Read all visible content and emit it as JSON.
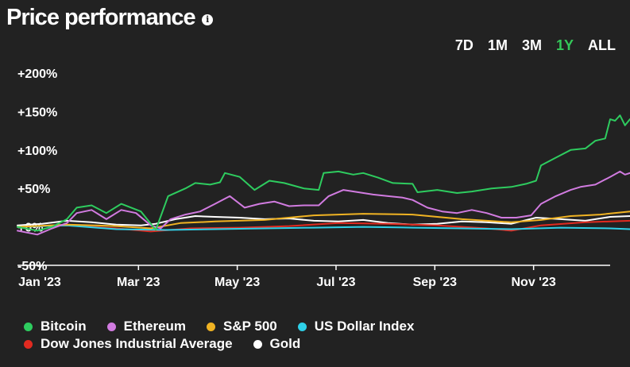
{
  "header": {
    "title": "Price performance",
    "info_icon": "info-icon"
  },
  "ranges": [
    {
      "label": "7D",
      "active": false
    },
    {
      "label": "1M",
      "active": false
    },
    {
      "label": "3M",
      "active": false
    },
    {
      "label": "1Y",
      "active": true
    },
    {
      "label": "ALL",
      "active": false
    }
  ],
  "colors": {
    "background": "#222222",
    "text": "#ffffff",
    "active": "#34c759"
  },
  "chart_data": {
    "type": "line",
    "title": "Price performance",
    "x_range": [
      0,
      12
    ],
    "x_unit": "months since Jan 1, 2023",
    "xticks": [
      {
        "label": "Jan '23",
        "value": 0.45
      },
      {
        "label": "Mar '23",
        "value": 2.45
      },
      {
        "label": "May '23",
        "value": 4.45
      },
      {
        "label": "Jul '23",
        "value": 6.45
      },
      {
        "label": "Sep '23",
        "value": 8.45
      },
      {
        "label": "Nov '23",
        "value": 10.45
      }
    ],
    "ylim": [
      -50,
      200
    ],
    "yticks": [
      {
        "label": "+200%",
        "value": 200
      },
      {
        "label": "+150%",
        "value": 150
      },
      {
        "label": "+100%",
        "value": 100
      },
      {
        "label": "+50%",
        "value": 50
      },
      {
        "label": "+0%",
        "value": 0
      },
      {
        "label": "-50%",
        "value": -50
      }
    ],
    "series": [
      {
        "name": "Bitcoin",
        "color": "#2ecc5f",
        "points": [
          [
            0,
            0
          ],
          [
            0.4,
            -5
          ],
          [
            0.7,
            0
          ],
          [
            1,
            10
          ],
          [
            1.2,
            25
          ],
          [
            1.5,
            28
          ],
          [
            1.8,
            18
          ],
          [
            2.1,
            30
          ],
          [
            2.5,
            20
          ],
          [
            2.8,
            -4
          ],
          [
            3.05,
            40
          ],
          [
            3.4,
            50
          ],
          [
            3.6,
            57
          ],
          [
            3.9,
            55
          ],
          [
            4.1,
            58
          ],
          [
            4.2,
            70
          ],
          [
            4.5,
            65
          ],
          [
            4.8,
            48
          ],
          [
            5.1,
            60
          ],
          [
            5.4,
            57
          ],
          [
            5.8,
            50
          ],
          [
            6.1,
            48
          ],
          [
            6.2,
            70
          ],
          [
            6.5,
            72
          ],
          [
            6.8,
            68
          ],
          [
            7.0,
            70
          ],
          [
            7.3,
            64
          ],
          [
            7.6,
            57
          ],
          [
            8.0,
            56
          ],
          [
            8.1,
            45
          ],
          [
            8.5,
            48
          ],
          [
            8.9,
            44
          ],
          [
            9.2,
            46
          ],
          [
            9.6,
            50
          ],
          [
            10.0,
            52
          ],
          [
            10.3,
            56
          ],
          [
            10.5,
            60
          ],
          [
            10.6,
            80
          ],
          [
            10.9,
            90
          ],
          [
            11.2,
            100
          ],
          [
            11.5,
            102
          ],
          [
            11.7,
            112
          ],
          [
            11.9,
            115
          ],
          [
            12.0,
            140
          ],
          [
            12.1,
            138
          ],
          [
            12.2,
            145
          ],
          [
            12.3,
            132
          ],
          [
            12.4,
            140
          ]
        ]
      },
      {
        "name": "Ethereum",
        "color": "#d17be0",
        "points": [
          [
            0,
            -5
          ],
          [
            0.4,
            -10
          ],
          [
            0.7,
            -2
          ],
          [
            1,
            5
          ],
          [
            1.2,
            18
          ],
          [
            1.5,
            22
          ],
          [
            1.8,
            10
          ],
          [
            2.1,
            22
          ],
          [
            2.4,
            18
          ],
          [
            2.7,
            2
          ],
          [
            2.9,
            -2
          ],
          [
            3.1,
            10
          ],
          [
            3.4,
            16
          ],
          [
            3.7,
            20
          ],
          [
            4.0,
            30
          ],
          [
            4.3,
            40
          ],
          [
            4.6,
            25
          ],
          [
            4.9,
            30
          ],
          [
            5.2,
            33
          ],
          [
            5.5,
            27
          ],
          [
            5.8,
            28
          ],
          [
            6.1,
            28
          ],
          [
            6.3,
            40
          ],
          [
            6.6,
            48
          ],
          [
            6.9,
            45
          ],
          [
            7.2,
            42
          ],
          [
            7.5,
            40
          ],
          [
            7.8,
            38
          ],
          [
            8.0,
            35
          ],
          [
            8.3,
            25
          ],
          [
            8.6,
            20
          ],
          [
            8.9,
            18
          ],
          [
            9.2,
            22
          ],
          [
            9.5,
            18
          ],
          [
            9.8,
            12
          ],
          [
            10.1,
            12
          ],
          [
            10.4,
            15
          ],
          [
            10.6,
            30
          ],
          [
            10.9,
            40
          ],
          [
            11.2,
            48
          ],
          [
            11.4,
            52
          ],
          [
            11.7,
            55
          ],
          [
            12.0,
            65
          ],
          [
            12.2,
            72
          ],
          [
            12.3,
            68
          ],
          [
            12.4,
            70
          ]
        ]
      },
      {
        "name": "S&P 500",
        "color": "#f0b323",
        "points": [
          [
            0,
            0
          ],
          [
            1,
            3
          ],
          [
            2,
            1
          ],
          [
            2.7,
            -2
          ],
          [
            3.3,
            5
          ],
          [
            4,
            7
          ],
          [
            5,
            9
          ],
          [
            6,
            15
          ],
          [
            7,
            17
          ],
          [
            8,
            16
          ],
          [
            9,
            10
          ],
          [
            10,
            6
          ],
          [
            10.6,
            9
          ],
          [
            11.2,
            14
          ],
          [
            11.8,
            16
          ],
          [
            12.4,
            20
          ]
        ]
      },
      {
        "name": "US Dollar Index",
        "color": "#2ed0e8",
        "points": [
          [
            0,
            0
          ],
          [
            1,
            2
          ],
          [
            2,
            -3
          ],
          [
            3,
            -4
          ],
          [
            4,
            -3
          ],
          [
            5,
            -2
          ],
          [
            6,
            -1
          ],
          [
            7,
            0
          ],
          [
            8,
            -1
          ],
          [
            9,
            -2
          ],
          [
            10,
            -3
          ],
          [
            11,
            -1
          ],
          [
            12,
            -2
          ],
          [
            12.4,
            -3
          ]
        ]
      },
      {
        "name": "Dow Jones Industrial Average",
        "color": "#e12a20",
        "points": [
          [
            0,
            0
          ],
          [
            1,
            2
          ],
          [
            2,
            -2
          ],
          [
            2.7,
            -6
          ],
          [
            3.5,
            -2
          ],
          [
            4.5,
            -1
          ],
          [
            5.5,
            1
          ],
          [
            6.5,
            5
          ],
          [
            7.5,
            4
          ],
          [
            8.5,
            2
          ],
          [
            9.5,
            -2
          ],
          [
            10,
            -5
          ],
          [
            10.6,
            2
          ],
          [
            11.5,
            6
          ],
          [
            12.4,
            8
          ]
        ]
      },
      {
        "name": "Gold",
        "color": "#ffffff",
        "points": [
          [
            0,
            2
          ],
          [
            0.5,
            4
          ],
          [
            1,
            8
          ],
          [
            1.5,
            6
          ],
          [
            2,
            3
          ],
          [
            2.5,
            2
          ],
          [
            2.8,
            4
          ],
          [
            3.2,
            10
          ],
          [
            3.6,
            14
          ],
          [
            4.0,
            13
          ],
          [
            4.5,
            12
          ],
          [
            5.0,
            10
          ],
          [
            5.5,
            11
          ],
          [
            6.0,
            8
          ],
          [
            6.5,
            7
          ],
          [
            7.0,
            9
          ],
          [
            7.5,
            5
          ],
          [
            8.0,
            3
          ],
          [
            8.5,
            4
          ],
          [
            9.0,
            7
          ],
          [
            9.5,
            6
          ],
          [
            10.0,
            4
          ],
          [
            10.5,
            12
          ],
          [
            11.0,
            10
          ],
          [
            11.5,
            8
          ],
          [
            12.0,
            13
          ],
          [
            12.4,
            14
          ]
        ]
      }
    ]
  }
}
